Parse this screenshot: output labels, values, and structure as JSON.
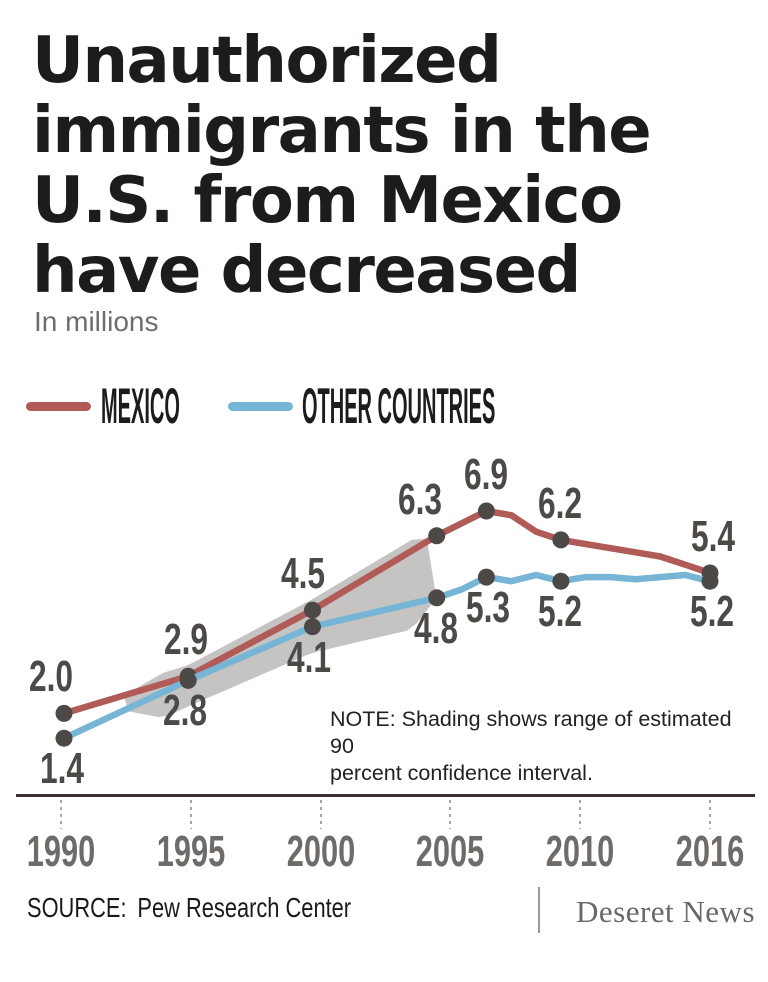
{
  "header": {
    "title_lines": [
      "Unauthorized",
      "immigrants in the",
      "U.S. from Mexico",
      "have decreased"
    ],
    "subtitle": "In millions"
  },
  "chart_data": {
    "type": "line",
    "title": "Unauthorized immigrants in the U.S. from Mexico have decreased",
    "unit_label": "In millions",
    "grid": "off",
    "legend_position": "top-left",
    "x_ticks": [
      "1990",
      "1995",
      "2000",
      "2005",
      "2010",
      "2016"
    ],
    "x_range": [
      1990,
      2016
    ],
    "y_implied_range": [
      0,
      7.5
    ],
    "note": {
      "text": "NOTE: Shading shows range of estimated 90 percent confidence interval.",
      "lines": [
        "NOTE: Shading shows range of estimated 90",
        "percent confidence interval."
      ]
    },
    "confidence_band": {
      "description": "Gray shading around both lines from about 1992 to 2005 showing range of estimated 90 percent confidence interval",
      "color": "#c6c4c3",
      "span_years": [
        1992.4,
        2005
      ]
    },
    "point_color": "#4b4846",
    "axis_color": "#3a3231",
    "series": [
      {
        "name": "MEXICO",
        "color": "#b05b57",
        "years": [
          1990,
          1995,
          2000,
          2005,
          2006,
          2007,
          2008,
          2009,
          2010,
          2011,
          2012,
          2013,
          2014,
          2015,
          2016
        ],
        "values": [
          2.0,
          2.9,
          4.5,
          6.3,
          6.6,
          6.9,
          6.8,
          6.4,
          6.2,
          6.1,
          6.0,
          5.9,
          5.8,
          5.6,
          5.4
        ],
        "labeled_points": [
          {
            "year": 1990,
            "label": "2.0",
            "position": "above"
          },
          {
            "year": 1995,
            "label": "2.9",
            "position": "above"
          },
          {
            "year": 2000,
            "label": "4.5",
            "position": "above"
          },
          {
            "year": 2005,
            "label": "6.3",
            "position": "above"
          },
          {
            "year": 2007,
            "label": "6.9",
            "position": "above"
          },
          {
            "year": 2010,
            "label": "6.2",
            "position": "above"
          },
          {
            "year": 2016,
            "label": "5.4",
            "position": "above"
          }
        ]
      },
      {
        "name": "OTHER COUNTRIES",
        "color": "#76b5d6",
        "years": [
          1990,
          1995,
          2000,
          2005,
          2006,
          2007,
          2008,
          2009,
          2010,
          2011,
          2012,
          2013,
          2014,
          2015,
          2016
        ],
        "values": [
          1.4,
          2.8,
          4.1,
          4.8,
          5.0,
          5.3,
          5.2,
          5.35,
          5.2,
          5.3,
          5.3,
          5.25,
          5.3,
          5.35,
          5.2
        ],
        "labeled_points": [
          {
            "year": 1990,
            "label": "1.4",
            "position": "below"
          },
          {
            "year": 1995,
            "label": "2.8",
            "position": "below"
          },
          {
            "year": 2000,
            "label": "4.1",
            "position": "below"
          },
          {
            "year": 2005,
            "label": "4.8",
            "position": "below"
          },
          {
            "year": 2007,
            "label": "5.3",
            "position": "below"
          },
          {
            "year": 2010,
            "label": "5.2",
            "position": "below"
          },
          {
            "year": 2016,
            "label": "5.2",
            "position": "below"
          }
        ]
      }
    ]
  },
  "footer": {
    "source_label": "SOURCE:",
    "source_value": "Pew Research Center",
    "brand": "Deseret News"
  }
}
